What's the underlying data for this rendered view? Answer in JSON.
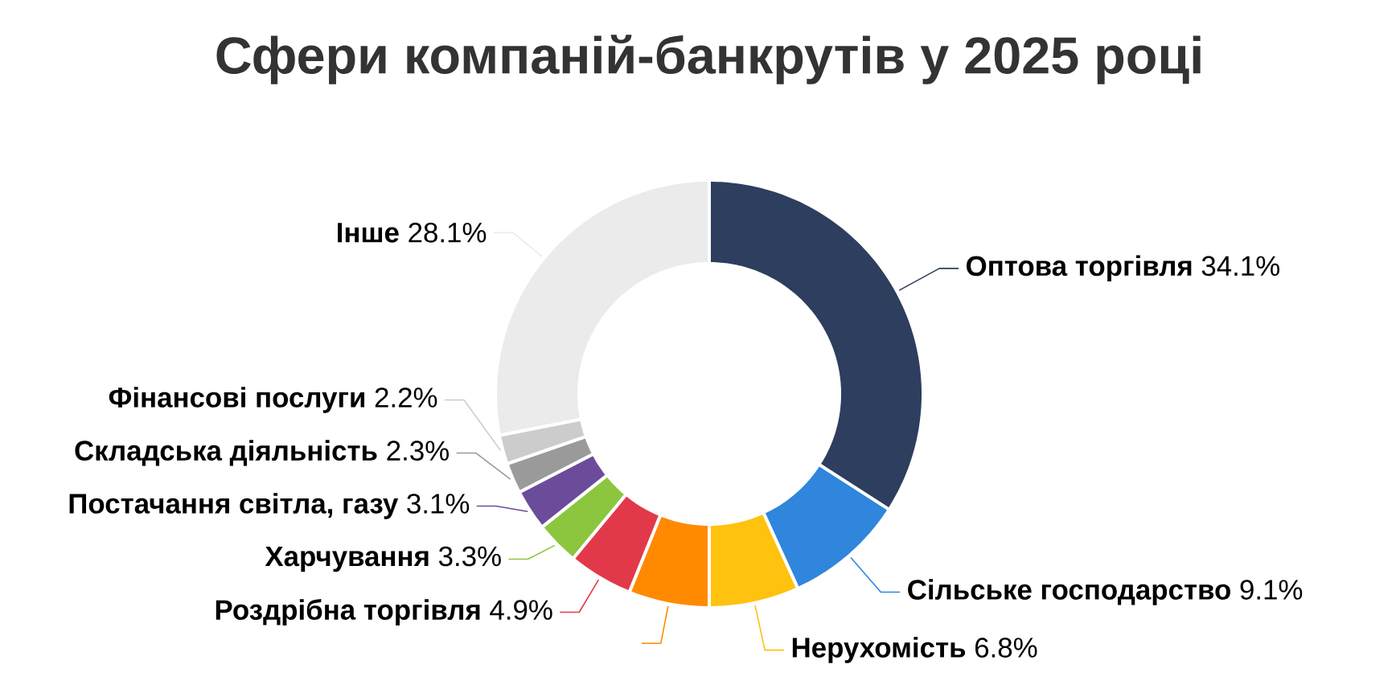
{
  "chart_data": {
    "type": "donut",
    "title": "Сфери компаній-банкрутів у 2025 році",
    "categories": [
      "Оптова торгівля",
      "Сільське господарство",
      "Нерухомість",
      null,
      "Роздрібна торгівля",
      "Харчування",
      "Постачання світла, газу",
      "Складська діяльність",
      "Фінансові послуги",
      "Інше"
    ],
    "values": [
      34.1,
      9.1,
      6.8,
      6.1,
      4.9,
      3.3,
      3.1,
      2.3,
      2.2,
      28.1
    ],
    "value_labels": [
      "34.1%",
      "9.1%",
      "6.8%",
      null,
      "4.9%",
      "3.3%",
      "3.1%",
      "2.3%",
      "2.2%",
      "28.1%"
    ],
    "colors": [
      "#2d3e5e",
      "#2f86dc",
      "#ffc20e",
      "#ff8a00",
      "#e2394a",
      "#8cc63f",
      "#6b4c9a",
      "#9a9a9a",
      "#cccccc",
      "#ebebeb"
    ]
  }
}
